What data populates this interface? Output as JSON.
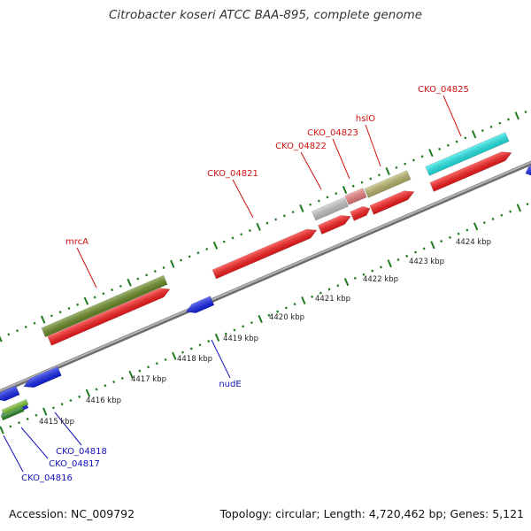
{
  "title": "Citrobacter koseri ATCC BAA-895, complete genome",
  "footer": {
    "accession": "Accession: NC_009792",
    "topology": "Topology: circular; Length: 4,720,462 bp; Genes: 5,121"
  },
  "colors": {
    "forward_cds": "#ff1a1a",
    "reverse_cds": "#1122ee",
    "forward_label": "#cc1111",
    "reverse_label": "#1111bb",
    "backbone": "#8c8c8c",
    "tick": "#1f7a1f"
  },
  "ruler": [
    "4415 kbp",
    "4416 kbp",
    "4417 kbp",
    "4418 kbp",
    "4419 kbp",
    "4420 kbp",
    "4421 kbp",
    "4422 kbp",
    "4423 kbp",
    "4424 kbp"
  ],
  "forward_labels": [
    {
      "name": "mrcA"
    },
    {
      "name": "CKO_04821"
    },
    {
      "name": "CKO_04822"
    },
    {
      "name": "CKO_04823"
    },
    {
      "name": "hslO"
    },
    {
      "name": "CKO_04825"
    }
  ],
  "reverse_labels": [
    {
      "name": "nudE"
    },
    {
      "name": "CKO_04818"
    },
    {
      "name": "CKO_04817"
    },
    {
      "name": "CKO_04816"
    }
  ],
  "features": [
    {
      "name": "mrcA-cog",
      "color": "#6b8e23"
    },
    {
      "name": "mrcA-cds",
      "color": "#ff1a1a"
    },
    {
      "name": "CKO_04821-cds",
      "color": "#ff1a1a"
    },
    {
      "name": "CKO_04822-cog",
      "color": "#c8c8c8"
    },
    {
      "name": "CKO_04822-cds",
      "color": "#ff1a1a"
    },
    {
      "name": "CKO_04823-cog",
      "color": "#f08080"
    },
    {
      "name": "CKO_04823-cds",
      "color": "#ff1a1a"
    },
    {
      "name": "hslO-cog",
      "color": "#bdb76b"
    },
    {
      "name": "hslO-cds",
      "color": "#ff1a1a"
    },
    {
      "name": "CKO_04825-cog",
      "color": "#22eeee"
    },
    {
      "name": "CKO_04825-cds",
      "color": "#ff1a1a"
    },
    {
      "name": "nudE-cds",
      "color": "#1122ee"
    },
    {
      "name": "CKO_04818-cds",
      "color": "#1122ee"
    },
    {
      "name": "CKO_04817-cds",
      "color": "#1122ee"
    },
    {
      "name": "CKO_04816-cds",
      "color": "#1122ee"
    },
    {
      "name": "CKO_04817-cog",
      "color": "#7dc832"
    },
    {
      "name": "CKO_04816-cog",
      "color": "#2a8a2a"
    },
    {
      "name": "next-reverse-cds",
      "color": "#1122ee"
    }
  ]
}
